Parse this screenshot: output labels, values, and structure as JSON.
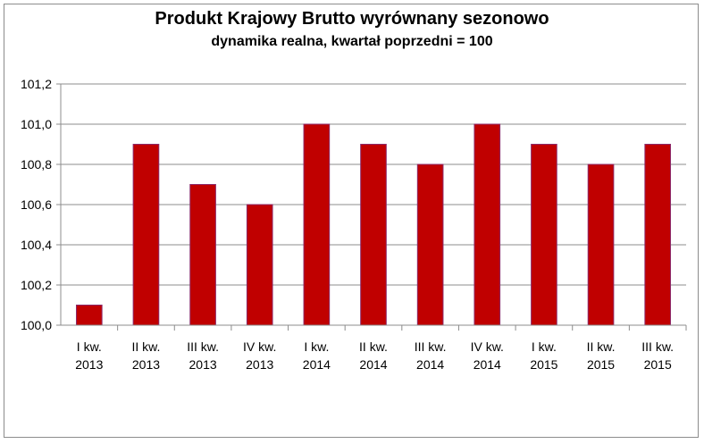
{
  "chart_data": {
    "type": "bar",
    "title": "Produkt Krajowy Brutto wyrównany sezonowo",
    "subtitle": "dynamika realna, kwartał poprzedni = 100",
    "xlabel": "",
    "ylabel": "",
    "categories": [
      [
        "I kw.",
        "2013"
      ],
      [
        "II kw.",
        "2013"
      ],
      [
        "III kw.",
        "2013"
      ],
      [
        "IV kw.",
        "2013"
      ],
      [
        "I kw.",
        "2014"
      ],
      [
        "II kw.",
        "2014"
      ],
      [
        "III kw.",
        "2014"
      ],
      [
        "IV kw.",
        "2014"
      ],
      [
        "I kw.",
        "2015"
      ],
      [
        "II kw.",
        "2015"
      ],
      [
        "III kw.",
        "2015"
      ]
    ],
    "values": [
      100.1,
      100.9,
      100.7,
      100.6,
      101.0,
      100.9,
      100.8,
      101.0,
      100.9,
      100.8,
      100.9
    ],
    "ylim": [
      100.0,
      101.2
    ],
    "yticks": [
      "100,0",
      "100,2",
      "100,4",
      "100,6",
      "100,8",
      "101,0",
      "101,2"
    ],
    "grid": true,
    "legend": "none",
    "bar_color": "#c00000",
    "bar_border_color": "#8c2a6a",
    "grid_color": "#8c8c8c"
  }
}
